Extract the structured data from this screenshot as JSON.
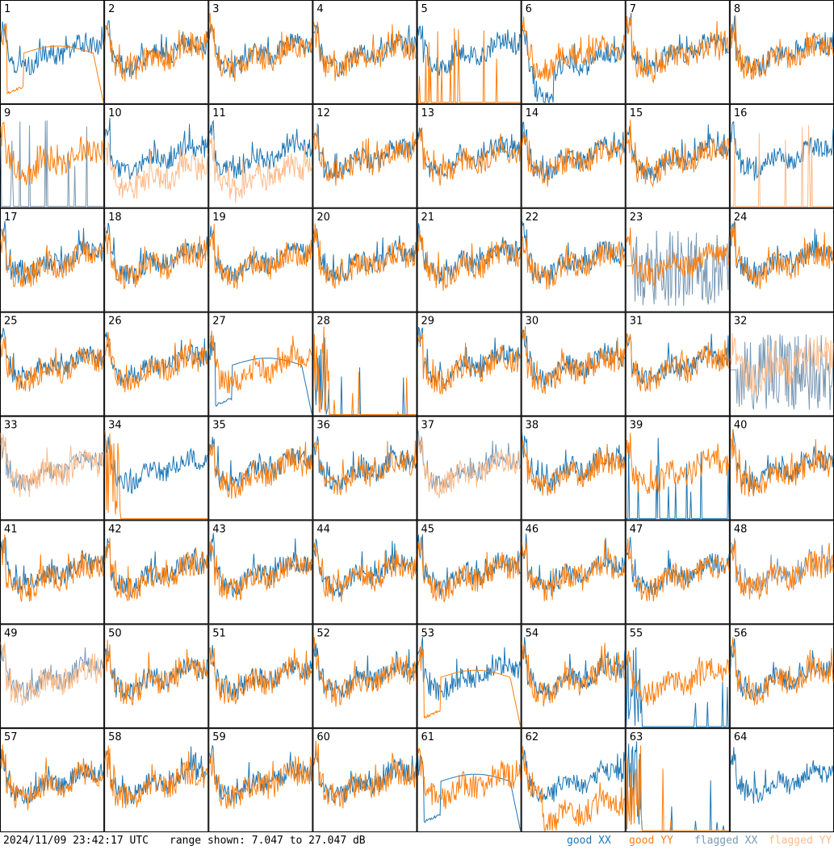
{
  "chart_data": {
    "type": "line",
    "layout": "small multiples, 8x8 grid of 64 panels",
    "panel_labels": [
      "1",
      "2",
      "3",
      "4",
      "5",
      "6",
      "7",
      "8",
      "9",
      "10",
      "11",
      "12",
      "13",
      "14",
      "15",
      "16",
      "17",
      "18",
      "19",
      "20",
      "21",
      "22",
      "23",
      "24",
      "25",
      "26",
      "27",
      "28",
      "29",
      "30",
      "31",
      "32",
      "33",
      "34",
      "35",
      "36",
      "37",
      "38",
      "39",
      "40",
      "41",
      "42",
      "43",
      "44",
      "45",
      "46",
      "47",
      "48",
      "49",
      "50",
      "51",
      "52",
      "53",
      "54",
      "55",
      "56",
      "57",
      "58",
      "59",
      "60",
      "61",
      "62",
      "63",
      "64"
    ],
    "ylim": [
      7.047,
      27.047
    ],
    "grid": false,
    "legend_position": "bottom-right",
    "series": [
      {
        "name": "good XX",
        "color": "#1f77b4"
      },
      {
        "name": "good YY",
        "color": "#ff7f0e"
      },
      {
        "name": "flagged XX",
        "color": "#7a99b5"
      },
      {
        "name": "flagged YY",
        "color": "#ffbb88"
      }
    ],
    "panel_styles": {
      "1": {
        "xx": "good",
        "yy": "good",
        "pattern": "yy_hump"
      },
      "5": {
        "xx": "good",
        "yy": "good",
        "pattern": "yy_spikes"
      },
      "6": {
        "xx": "good",
        "yy": "good",
        "pattern": "xx_dip"
      },
      "9": {
        "xx": "flagged",
        "yy": "good",
        "pattern": "xx_spikes"
      },
      "10": {
        "xx": "good",
        "yy": "flagged",
        "pattern": "yy_low"
      },
      "11": {
        "xx": "good",
        "yy": "flagged",
        "pattern": "yy_low"
      },
      "16": {
        "xx": "good",
        "yy": "flagged",
        "pattern": "yy_spikes"
      },
      "23": {
        "xx": "flagged",
        "yy": "good",
        "pattern": "xx_noisy"
      },
      "27": {
        "xx": "good",
        "yy": "good",
        "pattern": "xx_hump"
      },
      "28": {
        "xx": "good",
        "yy": "good",
        "pattern": "both_dead"
      },
      "32": {
        "xx": "flagged",
        "yy": "flagged",
        "pattern": "both_flagged_noisy"
      },
      "33": {
        "xx": "flagged",
        "yy": "flagged",
        "pattern": "normal"
      },
      "34": {
        "xx": "good",
        "yy": "good",
        "pattern": "yy_dead"
      },
      "37": {
        "xx": "flagged",
        "yy": "flagged",
        "pattern": "normal"
      },
      "39": {
        "xx": "good",
        "yy": "good",
        "pattern": "xx_spikes"
      },
      "48": {
        "xx": "flagged",
        "yy": "good",
        "pattern": "normal"
      },
      "49": {
        "xx": "flagged",
        "yy": "flagged",
        "pattern": "normal"
      },
      "53": {
        "xx": "good",
        "yy": "good",
        "pattern": "yy_hump"
      },
      "55": {
        "xx": "good",
        "yy": "good",
        "pattern": "xx_dead"
      },
      "61": {
        "xx": "good",
        "yy": "good",
        "pattern": "xx_hump"
      },
      "62": {
        "xx": "good",
        "yy": "good",
        "pattern": "yy_lower"
      },
      "63": {
        "xx": "good",
        "yy": "good",
        "pattern": "both_dead"
      },
      "64": {
        "xx": "good",
        "yy": "good",
        "pattern": "yy_none"
      }
    }
  },
  "footer": {
    "timestamp": "2024/11/09 23:42:17 UTC",
    "range": "range shown: 7.047 to 27.047 dB",
    "legend": [
      "good XX",
      "good YY",
      "flagged XX",
      "flagged YY"
    ]
  }
}
